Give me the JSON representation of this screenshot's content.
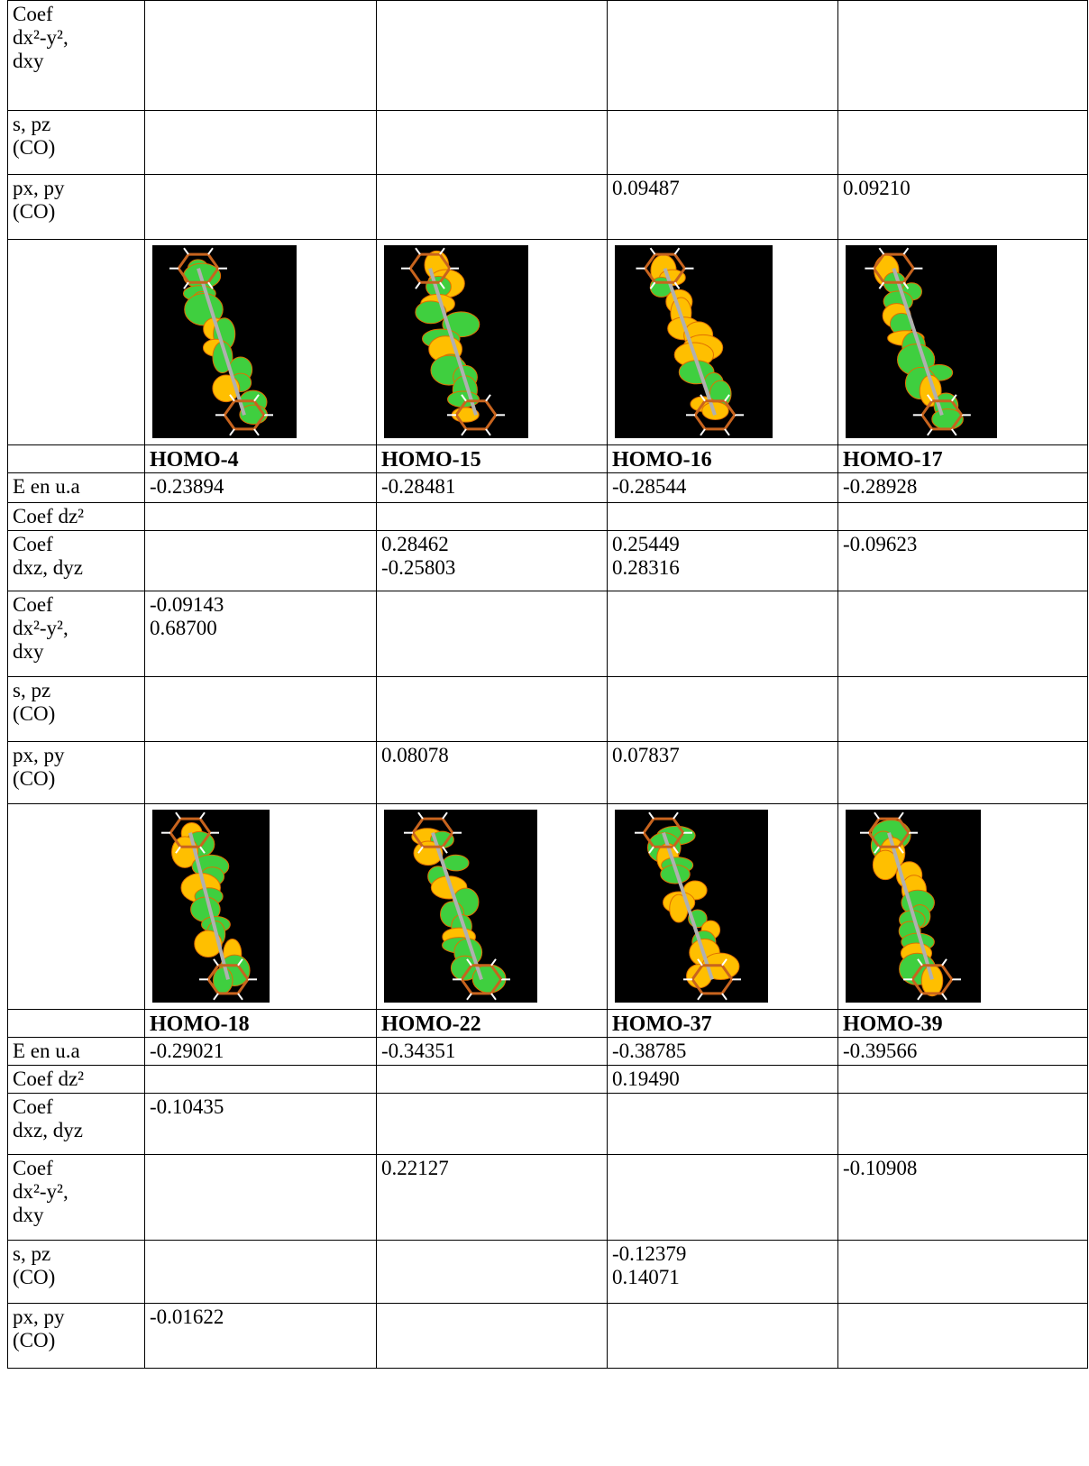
{
  "table": {
    "rows": [
      {
        "label": [
          "Coef",
          "dx²-y²,",
          "dxy"
        ],
        "cells": [
          null,
          null,
          null,
          null
        ]
      },
      {
        "label": [
          "s, pz",
          "(CO)"
        ],
        "cells": [
          null,
          null,
          null,
          null
        ]
      },
      {
        "label": [
          "px, py",
          "(CO)"
        ],
        "cells": [
          null,
          null,
          "0.09487",
          "0.09210"
        ]
      },
      {
        "label": null,
        "cells": [
          null,
          null,
          null,
          null
        ]
      },
      {
        "label": null,
        "cells": [
          "HOMO-4",
          "HOMO-15",
          "HOMO-16",
          "HOMO-17"
        ]
      },
      {
        "label": [
          "E en u.a"
        ],
        "cells": [
          "-0.23894",
          "-0.28481",
          "-0.28544",
          "-0.28928"
        ]
      },
      {
        "label": [
          "Coef dz²"
        ],
        "cells": [
          null,
          null,
          null,
          null
        ]
      },
      {
        "label": [
          "Coef",
          "dxz, dyz"
        ],
        "cells": [
          null,
          [
            "0.28462",
            "-0.25803"
          ],
          [
            "0.25449",
            "0.28316"
          ],
          "-0.09623"
        ]
      },
      {
        "label": [
          "Coef",
          "dx²-y²,",
          "dxy"
        ],
        "cells": [
          [
            "-0.09143",
            "0.68700"
          ],
          null,
          null,
          null
        ]
      },
      {
        "label": [
          "s, pz",
          "(CO)"
        ],
        "cells": [
          null,
          null,
          null,
          null
        ]
      },
      {
        "label": [
          "px, py",
          "(CO)"
        ],
        "cells": [
          null,
          "0.08078",
          "0.07837",
          null
        ]
      },
      {
        "label": null,
        "cells": [
          null,
          null,
          null,
          null
        ]
      },
      {
        "label": null,
        "cells": [
          "HOMO-18",
          "HOMO-22",
          "HOMO-37",
          "HOMO-39"
        ]
      },
      {
        "label": [
          "E en u.a"
        ],
        "cells": [
          "-0.29021",
          "-0.34351",
          "-0.38785",
          "-0.39566"
        ]
      },
      {
        "label": [
          "Coef dz²"
        ],
        "cells": [
          null,
          null,
          "0.19490",
          null
        ]
      },
      {
        "label": [
          "Coef",
          "dxz, dyz"
        ],
        "cells": [
          "-0.10435",
          null,
          null,
          null
        ]
      },
      {
        "label": [
          "Coef",
          "dx²-y²,",
          "dxy"
        ],
        "cells": [
          null,
          "0.22127",
          null,
          "-0.10908"
        ]
      },
      {
        "label": [
          "s, pz",
          "(CO)"
        ],
        "cells": [
          null,
          null,
          [
            "-0.12379",
            "0.14071"
          ],
          null
        ]
      },
      {
        "label": [
          "px, py",
          "(CO)"
        ],
        "cells": [
          "-0.01622",
          null,
          null,
          null
        ]
      }
    ]
  }
}
